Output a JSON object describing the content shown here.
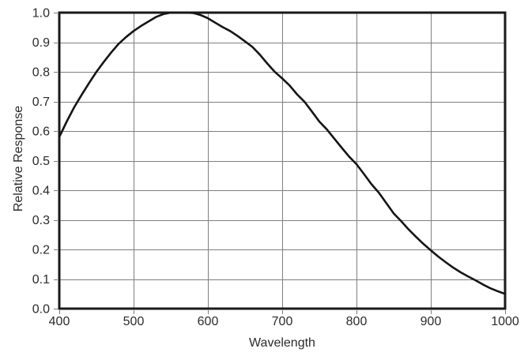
{
  "figure": {
    "background_color": "#ffffff",
    "curve_color": "#151515",
    "border_color": "#1a1a1a",
    "grid_color": "#7f7f7f",
    "tick_color": "#7f7f7f",
    "text_color": "#2b2b2b"
  },
  "chart_data": {
    "type": "line",
    "title": "",
    "xlabel": "Wavelength",
    "ylabel": "Relative Response",
    "xlim": [
      400,
      1000
    ],
    "ylim": [
      0.0,
      1.0
    ],
    "grid": true,
    "legend": "none",
    "x_ticks": [
      400,
      500,
      600,
      700,
      800,
      900,
      1000
    ],
    "x_tick_labels": [
      "400",
      "500",
      "600",
      "700",
      "800",
      "900",
      "1000"
    ],
    "y_ticks": [
      0.0,
      0.1,
      0.2,
      0.3,
      0.4,
      0.5,
      0.6,
      0.7,
      0.8,
      0.9,
      1.0
    ],
    "y_tick_labels": [
      "0.0",
      "0.1",
      "0.2",
      "0.3",
      "0.4",
      "0.5",
      "0.6",
      "0.7",
      "0.8",
      "0.9",
      "1.0"
    ],
    "series": [
      {
        "name": "relative-response-curve",
        "x": [
          400,
          410,
          420,
          430,
          440,
          450,
          460,
          470,
          480,
          490,
          500,
          510,
          520,
          530,
          540,
          550,
          560,
          570,
          580,
          590,
          600,
          610,
          620,
          630,
          640,
          650,
          660,
          670,
          680,
          690,
          700,
          710,
          720,
          730,
          740,
          750,
          760,
          770,
          780,
          790,
          800,
          810,
          820,
          830,
          840,
          850,
          860,
          870,
          880,
          890,
          900,
          910,
          920,
          930,
          940,
          950,
          960,
          970,
          980,
          990,
          1000
        ],
        "y": [
          0.58,
          0.632,
          0.68,
          0.722,
          0.762,
          0.8,
          0.834,
          0.866,
          0.895,
          0.918,
          0.938,
          0.955,
          0.97,
          0.985,
          0.995,
          1.0,
          1.0,
          1.0,
          0.999,
          0.992,
          0.981,
          0.966,
          0.951,
          0.938,
          0.921,
          0.903,
          0.884,
          0.858,
          0.828,
          0.8,
          0.778,
          0.754,
          0.724,
          0.699,
          0.666,
          0.632,
          0.606,
          0.575,
          0.544,
          0.514,
          0.488,
          0.455,
          0.421,
          0.392,
          0.357,
          0.322,
          0.296,
          0.268,
          0.243,
          0.219,
          0.197,
          0.176,
          0.157,
          0.139,
          0.123,
          0.109,
          0.096,
          0.082,
          0.069,
          0.059,
          0.05
        ]
      }
    ]
  }
}
